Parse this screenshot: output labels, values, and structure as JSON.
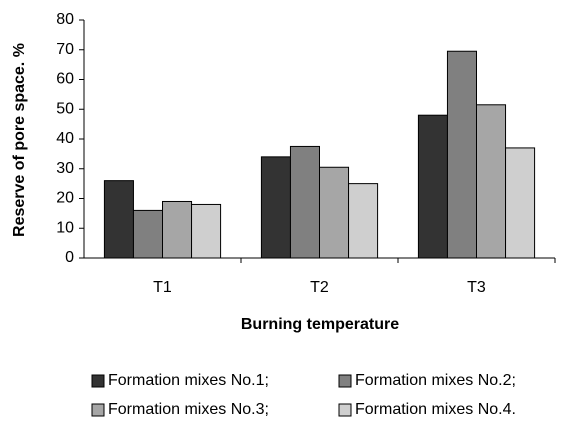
{
  "chart_data": {
    "type": "bar",
    "xlabel": "Burning temperature",
    "ylabel": "Reserve of pore space. %",
    "categories": [
      "T1",
      "T2",
      "T3"
    ],
    "series": [
      {
        "name": "Formation mixes No.1;",
        "color": "#333333",
        "values": [
          26,
          34,
          48
        ]
      },
      {
        "name": "Formation mixes No.2;",
        "color": "#808080",
        "values": [
          16,
          37.5,
          69.5
        ]
      },
      {
        "name": "Formation mixes No.3;",
        "color": "#a6a6a6",
        "values": [
          19,
          30.5,
          51.5
        ]
      },
      {
        "name": "Formation mixes No.4.",
        "color": "#cfcfcf",
        "values": [
          18,
          25,
          37
        ]
      }
    ],
    "ylim": [
      0,
      80
    ],
    "yticks": [
      0,
      10,
      20,
      30,
      40,
      50,
      60,
      70,
      80
    ],
    "grid": false
  }
}
